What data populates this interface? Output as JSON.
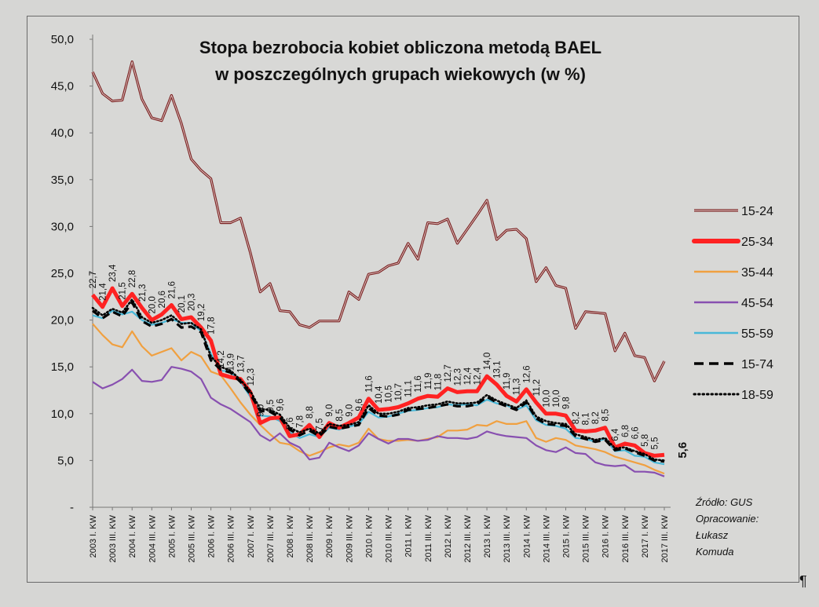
{
  "chart_data": {
    "type": "line",
    "title": "Stopa bezrobocia kobiet obliczona metodą BAEL",
    "subtitle": "w poszczególnych grupach wiekowych (w %)",
    "ylim": [
      0,
      50
    ],
    "yticks": [
      "-",
      "5,0",
      "10,0",
      "15,0",
      "20,0",
      "25,0",
      "30,0",
      "35,0",
      "40,0",
      "45,0",
      "50,0"
    ],
    "grid": false,
    "legend_position": "right",
    "x_tick_labels": [
      "2003 I. KW",
      "2003 III. KW",
      "2004 I. KW",
      "2004 III. KW",
      "2005 I. KW",
      "2005 III. KW",
      "2006 I. KW",
      "2006 III. KW",
      "2007 I. KW",
      "2007 III. KW",
      "2008 I. KW",
      "2008 III. KW",
      "2009 I. KW",
      "2009 III. KW",
      "2010 I. KW",
      "2010 III. KW",
      "2011 I. KW",
      "2011 III. KW",
      "2012 I. KW",
      "2012 III. KW",
      "2013 I. KW",
      "2013 III. KW",
      "2014 I. KW",
      "2014 III. KW",
      "2015 I. KW",
      "2015 III. KW",
      "2016 I. KW",
      "2016 III. KW",
      "2017 I. KW",
      "2017 III. KW"
    ],
    "series": [
      {
        "name": "15-24",
        "color": "#7a2020",
        "style": "double-line",
        "values": [
          46.5,
          44.2,
          43.4,
          43.5,
          47.6,
          43.6,
          41.6,
          41.3,
          44.0,
          41.0,
          37.2,
          36.0,
          35.1,
          30.4,
          30.4,
          30.9,
          27.2,
          23.0,
          23.9,
          21.0,
          20.9,
          19.5,
          19.2,
          19.9,
          19.9,
          19.9,
          23.0,
          22.2,
          24.9,
          25.1,
          25.8,
          26.1,
          28.2,
          26.5,
          30.4,
          30.3,
          30.8,
          28.2,
          29.7,
          31.2,
          32.8,
          28.6,
          29.6,
          29.7,
          28.7,
          24.1,
          25.6,
          23.7,
          23.4,
          19.1,
          20.9,
          20.8,
          20.7,
          16.7,
          18.6,
          16.2,
          16.0,
          13.5,
          15.6
        ]
      },
      {
        "name": "25-34",
        "color": "#ff2222",
        "style": "thick",
        "values": [
          22.7,
          21.4,
          23.4,
          21.5,
          22.8,
          21.3,
          20.0,
          20.6,
          21.6,
          20.1,
          20.3,
          19.2,
          17.8,
          14.2,
          13.9,
          13.7,
          12.3,
          9.0,
          9.5,
          9.6,
          7.6,
          7.8,
          8.8,
          7.5,
          9.0,
          8.5,
          9.0,
          9.6,
          11.6,
          10.4,
          10.5,
          10.7,
          11.1,
          11.6,
          11.9,
          11.8,
          12.7,
          12.3,
          12.4,
          12.4,
          14.0,
          13.1,
          11.9,
          11.3,
          12.6,
          11.2,
          10.0,
          10.0,
          9.8,
          8.2,
          8.1,
          8.2,
          8.5,
          6.4,
          6.8,
          6.6,
          5.8,
          5.5,
          5.6
        ]
      },
      {
        "name": "35-44",
        "color": "#f0a040",
        "style": "line",
        "values": [
          19.6,
          18.4,
          17.4,
          17.1,
          18.8,
          17.2,
          16.2,
          16.6,
          17.0,
          15.7,
          16.6,
          16.1,
          14.5,
          14.1,
          12.7,
          11.2,
          9.9,
          8.8,
          7.8,
          6.9,
          6.7,
          6.0,
          5.5,
          5.9,
          6.4,
          6.7,
          6.5,
          6.9,
          8.4,
          7.3,
          7.1,
          7.1,
          7.2,
          7.1,
          7.3,
          7.5,
          8.2,
          8.2,
          8.3,
          8.8,
          8.7,
          9.2,
          8.9,
          8.9,
          9.2,
          7.4,
          7.0,
          7.4,
          7.2,
          6.6,
          6.4,
          6.2,
          5.9,
          5.4,
          5.1,
          4.8,
          4.5,
          4.0,
          3.6
        ]
      },
      {
        "name": "45-54",
        "color": "#8850b0",
        "style": "line",
        "values": [
          13.4,
          12.7,
          13.1,
          13.7,
          14.7,
          13.5,
          13.4,
          13.6,
          15.0,
          14.8,
          14.5,
          13.7,
          11.7,
          11.0,
          10.5,
          9.8,
          9.1,
          7.7,
          7.1,
          7.9,
          6.9,
          6.4,
          5.1,
          5.3,
          6.9,
          6.4,
          6.0,
          6.6,
          7.9,
          7.3,
          6.8,
          7.3,
          7.3,
          7.1,
          7.2,
          7.6,
          7.4,
          7.4,
          7.3,
          7.5,
          8.1,
          7.8,
          7.6,
          7.5,
          7.4,
          6.6,
          6.1,
          5.9,
          6.4,
          5.8,
          5.7,
          4.8,
          4.5,
          4.4,
          4.5,
          3.8,
          3.8,
          3.7,
          3.3
        ]
      },
      {
        "name": "55-59",
        "color": "#48b8d8",
        "style": "line",
        "values": [
          20.5,
          20.2,
          21.0,
          20.6,
          20.9,
          20.0,
          19.5,
          19.7,
          20.1,
          19.7,
          19.7,
          18.8,
          16.4,
          14.6,
          14.5,
          13.4,
          11.8,
          9.8,
          9.7,
          9.2,
          8.0,
          7.4,
          7.8,
          7.5,
          8.5,
          8.3,
          8.6,
          8.9,
          10.2,
          9.6,
          9.7,
          10.0,
          10.3,
          10.4,
          10.6,
          10.7,
          11.0,
          10.9,
          11.0,
          10.9,
          11.5,
          11.1,
          10.9,
          10.4,
          10.9,
          9.3,
          8.8,
          8.7,
          8.4,
          7.4,
          7.3,
          7.0,
          7.3,
          6.0,
          6.1,
          5.5,
          5.4,
          4.8,
          4.6
        ]
      },
      {
        "name": "15-74",
        "color": "#000000",
        "style": "dashed",
        "values": [
          21.0,
          20.2,
          20.9,
          20.4,
          21.9,
          19.9,
          19.3,
          19.6,
          20.1,
          19.2,
          19.3,
          18.7,
          15.7,
          14.7,
          14.4,
          13.4,
          12.1,
          10.3,
          10.2,
          9.6,
          8.3,
          7.7,
          8.2,
          7.6,
          8.6,
          8.4,
          8.6,
          8.8,
          10.6,
          9.8,
          9.7,
          9.9,
          10.4,
          10.5,
          10.6,
          10.8,
          11.0,
          10.8,
          10.8,
          11.0,
          11.8,
          11.2,
          10.8,
          10.4,
          11.2,
          9.5,
          8.9,
          8.8,
          8.7,
          7.6,
          7.3,
          7.0,
          7.2,
          6.1,
          6.3,
          5.9,
          5.5,
          5.0,
          4.9
        ]
      },
      {
        "name": "18-59",
        "color": "#000000",
        "style": "dotted",
        "values": [
          21.3,
          20.5,
          21.2,
          20.8,
          22.2,
          20.3,
          19.7,
          20.0,
          20.5,
          19.6,
          19.7,
          19.0,
          16.1,
          15.0,
          14.6,
          13.6,
          12.4,
          10.5,
          10.4,
          9.9,
          8.5,
          8.0,
          8.4,
          7.9,
          8.9,
          8.7,
          8.8,
          9.1,
          10.9,
          10.0,
          10.0,
          10.2,
          10.6,
          10.7,
          10.9,
          11.0,
          11.3,
          11.1,
          11.1,
          11.2,
          12.0,
          11.4,
          11.0,
          10.6,
          11.4,
          9.7,
          9.2,
          9.0,
          8.9,
          7.8,
          7.5,
          7.2,
          7.4,
          6.3,
          6.4,
          6.0,
          5.7,
          5.1,
          5.0
        ]
      }
    ],
    "data_labels_25_34": [
      "22,7",
      "21,4",
      "23,4",
      "21,5",
      "22,8",
      "21,3",
      "20,0",
      "20,6",
      "21,6",
      "20,1",
      "20,3",
      "19,2",
      "17,8",
      "14,2",
      "13,9",
      "13,7",
      "12,3",
      "9,0",
      "9,5",
      "9,6",
      "7,6",
      "7,8",
      "8,8",
      "7,5",
      "9,0",
      "8,5",
      "9,0",
      "9,6",
      "11,6",
      "10,4",
      "10,5",
      "10,7",
      "11,1",
      "11,6",
      "11,9",
      "11,8",
      "12,7",
      "12,3",
      "12,4",
      "12,4",
      "14,0",
      "13,1",
      "11,9",
      "11,3",
      "12,6",
      "11,2",
      "10,0",
      "10,0",
      "9,8",
      "8,2",
      "8,1",
      "8,2",
      "8,5",
      "6,4",
      "6,8",
      "6,6",
      "5,8",
      "5,5"
    ],
    "last_label": "5,6"
  },
  "source": {
    "line1": "Źródło: GUS",
    "line2": "Opracowanie:",
    "line3": "Łukasz",
    "line4": "Komuda"
  },
  "pilcrow": "¶"
}
